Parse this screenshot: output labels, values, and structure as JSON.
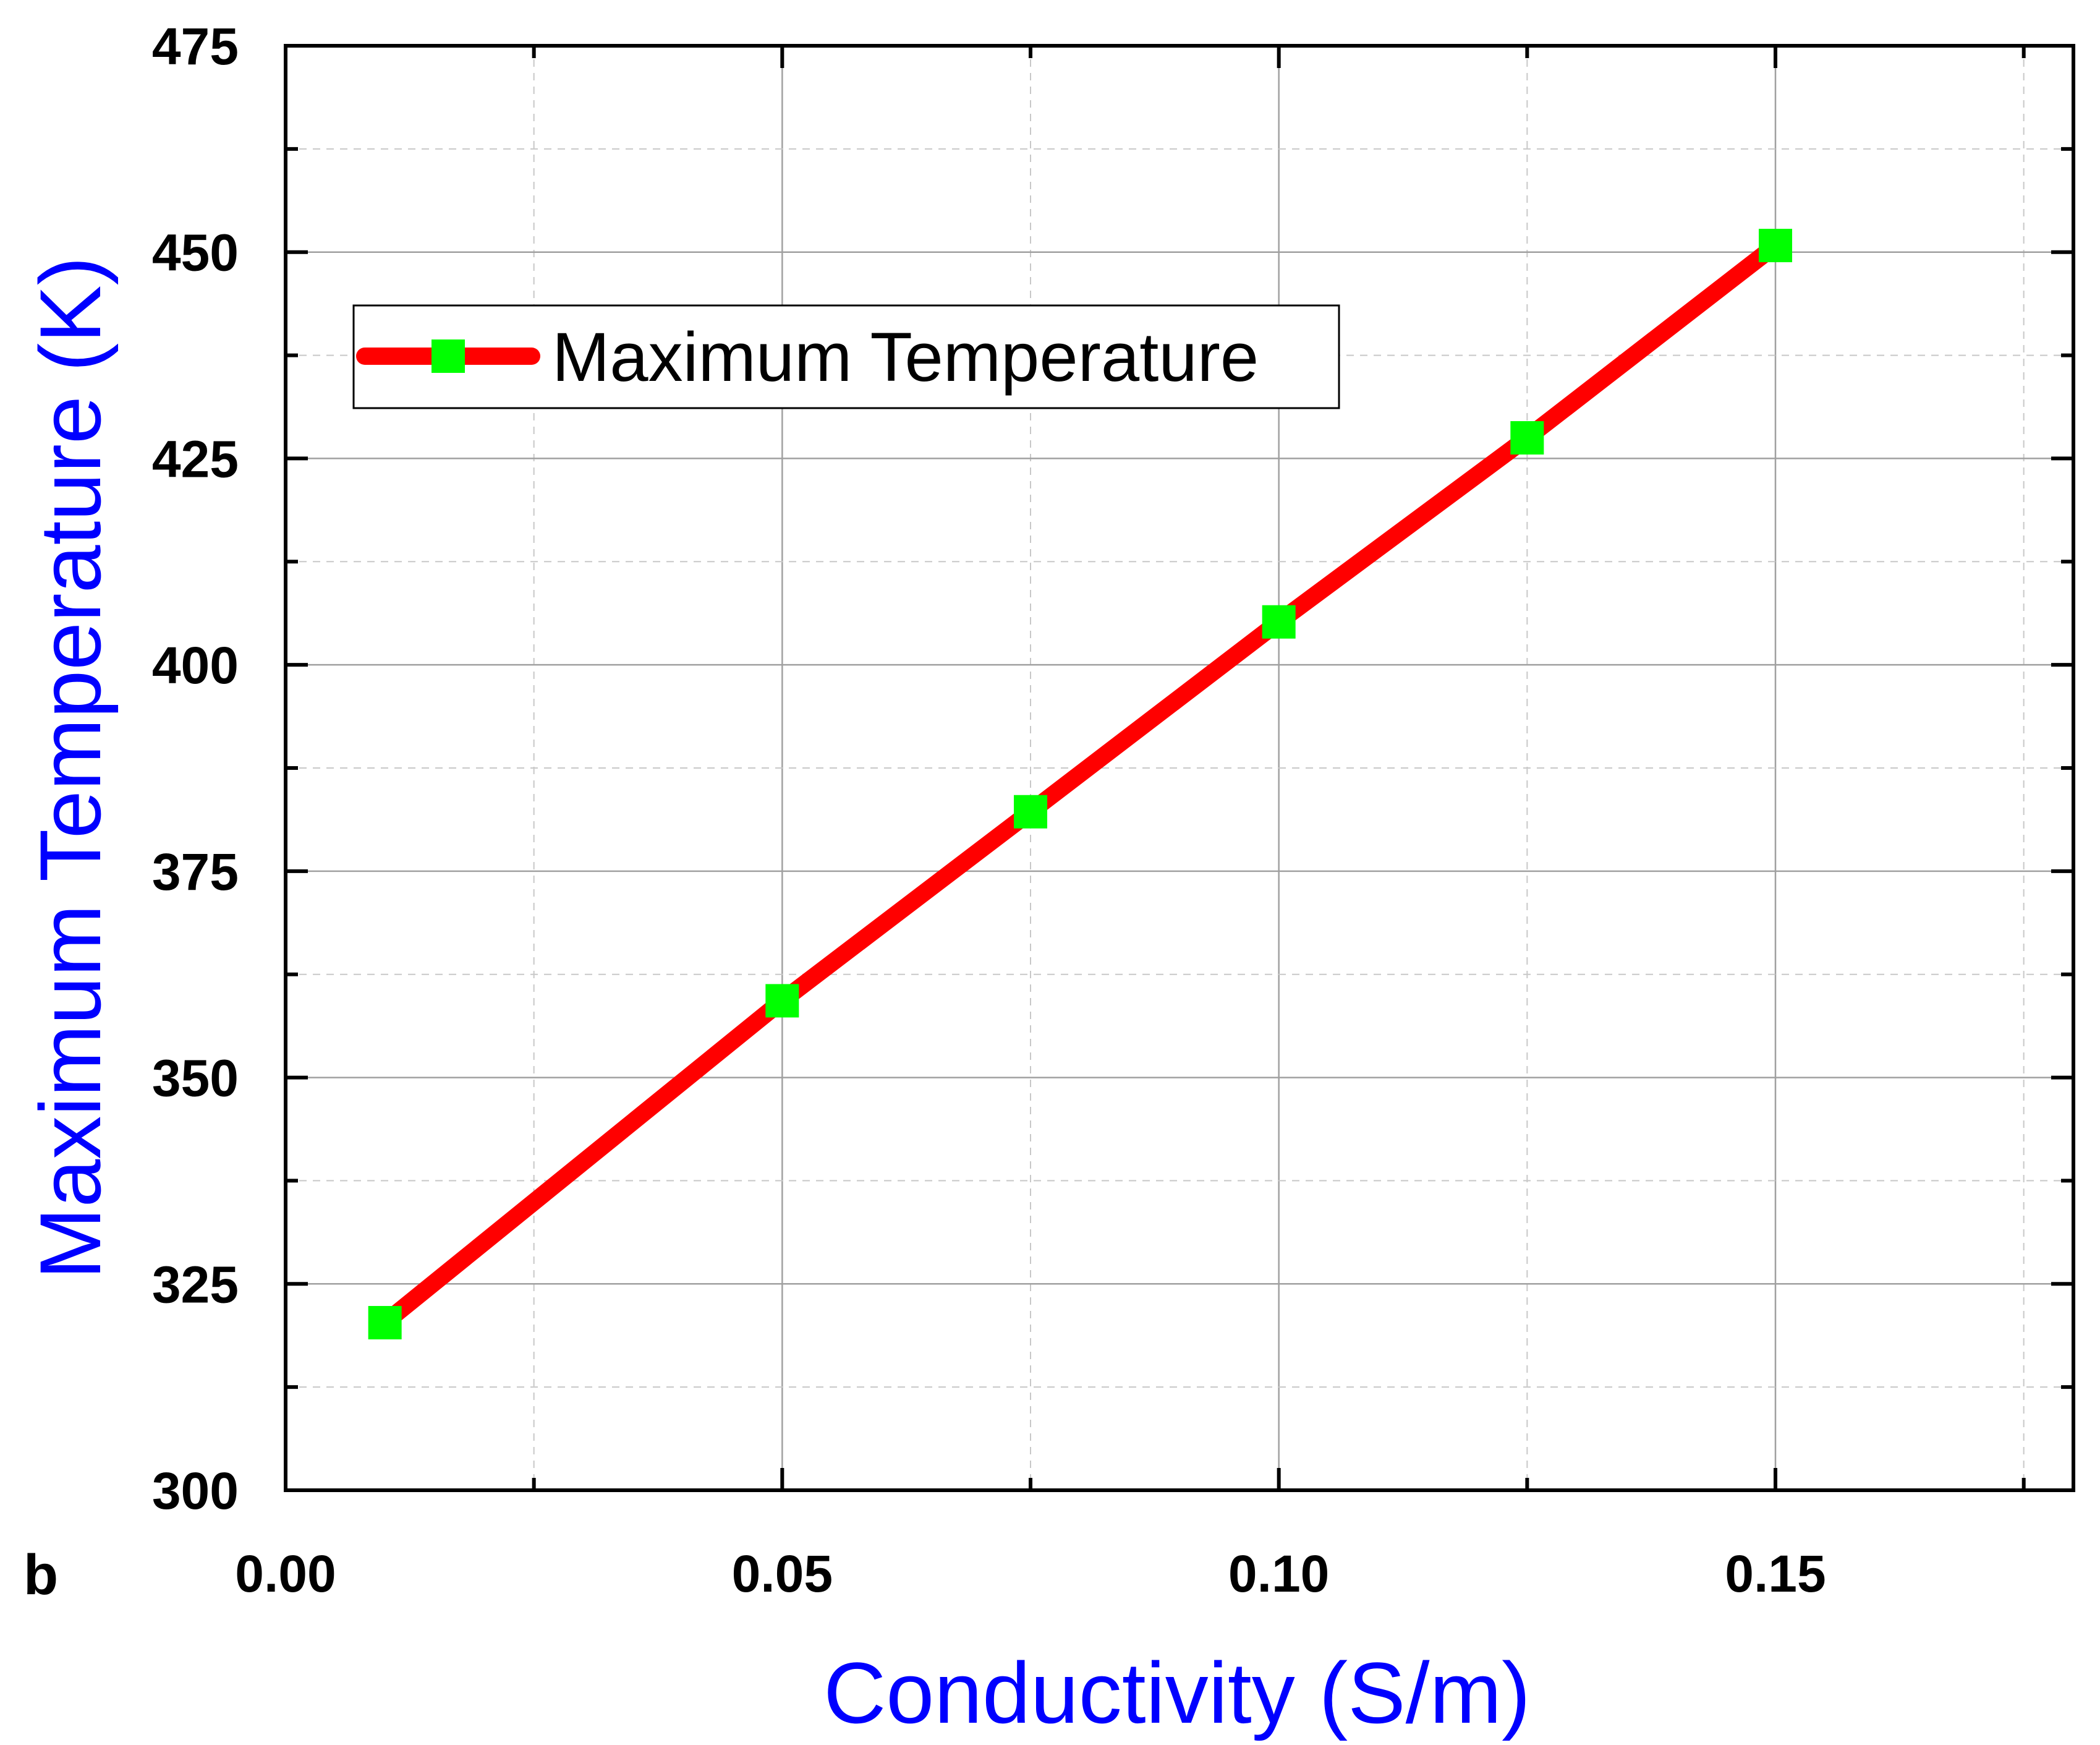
{
  "chart_data": {
    "type": "line",
    "panel_label": "b",
    "xlabel": "Conductivity (S/m)",
    "ylabel": "Maximum Temperature (K)",
    "xlim": [
      0,
      0.18
    ],
    "ylim": [
      300,
      475
    ],
    "x_ticks": [
      0.0,
      0.05,
      0.1,
      0.15
    ],
    "x_tick_labels": [
      "0.00",
      "0.05",
      "0.10",
      "0.15"
    ],
    "x_minor_ticks": [
      0.025,
      0.075,
      0.125,
      0.175
    ],
    "y_ticks": [
      300,
      325,
      350,
      375,
      400,
      425,
      450,
      475
    ],
    "y_tick_labels": [
      "300",
      "325",
      "350",
      "375",
      "400",
      "425",
      "450",
      "475"
    ],
    "y_minor_ticks": [
      312.5,
      337.5,
      362.5,
      387.5,
      412.5,
      437.5,
      462.5
    ],
    "grid": true,
    "legend_position": "top-left",
    "series": [
      {
        "name": "Maximum Temperature",
        "x": [
          0.01,
          0.05,
          0.075,
          0.1,
          0.125,
          0.15
        ],
        "y": [
          320.3,
          359.3,
          382.2,
          405.2,
          427.5,
          450.8
        ],
        "line_color": "#ff0000",
        "marker_color": "#00ff00",
        "marker": "square"
      }
    ]
  }
}
